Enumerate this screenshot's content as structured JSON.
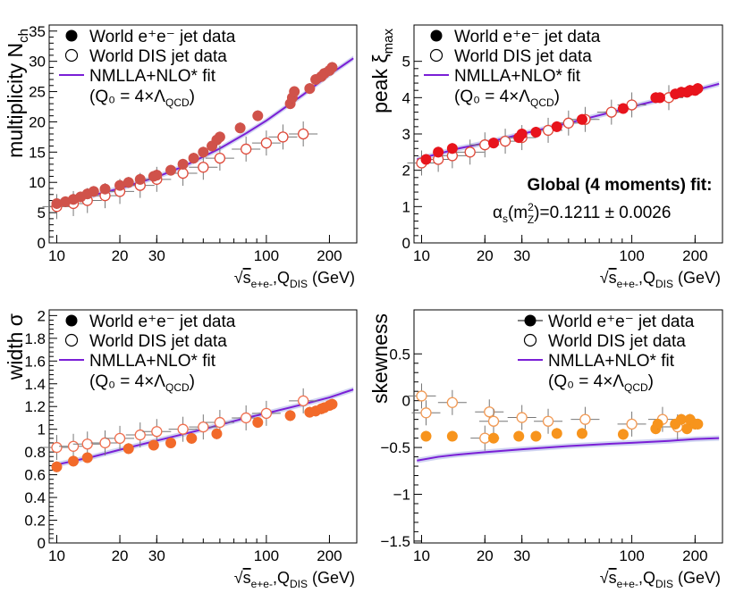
{
  "figure": {
    "note": "2x2 panel of jet moments vs energy scale"
  },
  "chart_data": [
    {
      "id": "multiplicity",
      "type": "scatter",
      "ylabel_main": "multiplicity N",
      "ylabel_sub": "ch",
      "xlabel_main": "s",
      "xlabel_sub": "e+e-",
      "xlabel_rest": ",Q",
      "xlabel_sub2": "DIS",
      "xlabel_unit": " (GeV)",
      "xscale": "log",
      "xlim": [
        9.2,
        270
      ],
      "ylim": [
        0,
        36
      ],
      "yticks": [
        0,
        5,
        10,
        15,
        20,
        25,
        30,
        35
      ],
      "ytick_labels": [
        "0",
        "5",
        "10",
        "15",
        "20",
        "25",
        "30",
        "35"
      ],
      "xticks": [
        10,
        20,
        30,
        100,
        200
      ],
      "xtick_labels": [
        "10",
        "20",
        "30",
        "100",
        "200"
      ],
      "legend": {
        "ee": "World e⁺e⁻ jet data",
        "dis": "World DIS jet data",
        "fit": "NMLLA+NLO* fit",
        "q0": "(Q₀ = 4×Λ",
        "q0_sub": "QCD",
        "q0_end": ")"
      },
      "ee_color": "#d0524a",
      "dis_color": "#e04a3a",
      "fit_color": "#7a1fd6",
      "ee_points": [
        [
          10,
          6.5
        ],
        [
          11,
          6.8
        ],
        [
          12,
          7.2
        ],
        [
          13,
          7.6
        ],
        [
          14,
          8.1
        ],
        [
          15,
          8.5
        ],
        [
          17,
          8.9
        ],
        [
          20,
          9.5
        ],
        [
          22,
          10.0
        ],
        [
          25,
          10.5
        ],
        [
          29,
          11.0
        ],
        [
          30,
          11.2
        ],
        [
          35,
          12.0
        ],
        [
          40,
          13.0
        ],
        [
          45,
          14.0
        ],
        [
          50,
          15.0
        ],
        [
          55,
          16.0
        ],
        [
          58,
          17.0
        ],
        [
          60,
          17.5
        ],
        [
          75,
          19.0
        ],
        [
          91,
          21.0
        ],
        [
          130,
          23.0
        ],
        [
          133,
          24.0
        ],
        [
          136,
          25.0
        ],
        [
          161,
          25.5
        ],
        [
          172,
          27.0
        ],
        [
          183,
          27.5
        ],
        [
          189,
          28.0
        ],
        [
          200,
          28.5
        ],
        [
          206,
          29.0
        ]
      ],
      "dis_points": [
        [
          10,
          6.0
        ],
        [
          12,
          6.5
        ],
        [
          14,
          7.0
        ],
        [
          17,
          7.8
        ],
        [
          20,
          8.5
        ],
        [
          25,
          9.5
        ],
        [
          30,
          10.5
        ],
        [
          40,
          11.5
        ],
        [
          50,
          12.5
        ],
        [
          60,
          14.0
        ],
        [
          80,
          15.5
        ],
        [
          100,
          16.5
        ],
        [
          120,
          17.5
        ],
        [
          150,
          18.0
        ]
      ],
      "fit_curve": [
        [
          9.5,
          6.6
        ],
        [
          12,
          7.2
        ],
        [
          15,
          7.9
        ],
        [
          20,
          9.0
        ],
        [
          30,
          10.9
        ],
        [
          40,
          12.6
        ],
        [
          60,
          15.6
        ],
        [
          80,
          18.1
        ],
        [
          100,
          20.2
        ],
        [
          150,
          24.5
        ],
        [
          200,
          27.8
        ],
        [
          260,
          30.5
        ]
      ]
    },
    {
      "id": "peak",
      "type": "scatter",
      "ylabel_main": "peak ξ",
      "ylabel_sub": "max",
      "xlabel_main": "s",
      "xlabel_sub": "e+e-",
      "xlabel_rest": ",Q",
      "xlabel_sub2": "DIS",
      "xlabel_unit": " (GeV)",
      "xscale": "log",
      "xlim": [
        9.2,
        270
      ],
      "ylim": [
        0,
        6
      ],
      "yticks": [
        0,
        1,
        2,
        3,
        4,
        5
      ],
      "ytick_labels": [
        "0",
        "1",
        "2",
        "3",
        "4",
        "5"
      ],
      "xticks": [
        10,
        20,
        30,
        100,
        200
      ],
      "xtick_labels": [
        "10",
        "20",
        "30",
        "100",
        "200"
      ],
      "legend": {
        "ee": "World e⁺e⁻ jet data",
        "dis": "World DIS jet data",
        "fit": "NMLLA+NLO* fit",
        "q0": "(Q₀ = 4×Λ",
        "q0_sub": "QCD",
        "q0_end": ")"
      },
      "annotation_title": "Global (4 moments) fit:",
      "annotation_alpha": "α",
      "annotation_alpha_sub": "s",
      "annotation_m": "(m",
      "annotation_m_sup": "2",
      "annotation_m_sub": "Z",
      "annotation_value": ")=0.1211 ± 0.0026",
      "ee_color": "#e8141c",
      "dis_color": "#e04a3a",
      "fit_color": "#7a1fd6",
      "ee_points": [
        [
          10.5,
          2.3
        ],
        [
          12,
          2.5
        ],
        [
          14,
          2.6
        ],
        [
          22,
          2.75
        ],
        [
          29,
          2.9
        ],
        [
          30,
          3.0
        ],
        [
          35,
          3.05
        ],
        [
          44,
          3.2
        ],
        [
          58,
          3.4
        ],
        [
          91,
          3.7
        ],
        [
          130,
          4.0
        ],
        [
          136,
          4.0
        ],
        [
          161,
          4.1
        ],
        [
          172,
          4.15
        ],
        [
          183,
          4.15
        ],
        [
          189,
          4.2
        ],
        [
          200,
          4.2
        ],
        [
          206,
          4.25
        ]
      ],
      "dis_points": [
        [
          10,
          2.2
        ],
        [
          12,
          2.3
        ],
        [
          14,
          2.4
        ],
        [
          17,
          2.5
        ],
        [
          20,
          2.7
        ],
        [
          25,
          2.8
        ],
        [
          30,
          2.9
        ],
        [
          40,
          3.1
        ],
        [
          50,
          3.3
        ],
        [
          60,
          3.4
        ],
        [
          80,
          3.6
        ],
        [
          100,
          3.8
        ],
        [
          150,
          4.0
        ]
      ],
      "fit_curve": [
        [
          9.5,
          2.3
        ],
        [
          15,
          2.6
        ],
        [
          20,
          2.75
        ],
        [
          30,
          3.0
        ],
        [
          50,
          3.3
        ],
        [
          80,
          3.6
        ],
        [
          100,
          3.75
        ],
        [
          150,
          4.0
        ],
        [
          200,
          4.2
        ],
        [
          260,
          4.38
        ]
      ]
    },
    {
      "id": "width",
      "type": "scatter",
      "ylabel_main": "width σ",
      "ylabel_sub": "",
      "xlabel_main": "s",
      "xlabel_sub": "e+e-",
      "xlabel_rest": ",Q",
      "xlabel_sub2": "DIS",
      "xlabel_unit": " (GeV)",
      "xscale": "log",
      "xlim": [
        9.2,
        270
      ],
      "ylim": [
        0,
        2.05
      ],
      "yticks": [
        0,
        0.2,
        0.4,
        0.6,
        0.8,
        1.0,
        1.2,
        1.4,
        1.6,
        1.8,
        2.0
      ],
      "ytick_labels": [
        "0",
        "0.2",
        "0.4",
        "0.6",
        "0.8",
        "1",
        "1.2",
        "1.4",
        "1.6",
        "1.8",
        "2"
      ],
      "xticks": [
        10,
        20,
        30,
        100,
        200
      ],
      "xtick_labels": [
        "10",
        "20",
        "30",
        "100",
        "200"
      ],
      "legend": {
        "ee": "World e⁺e⁻ jet data",
        "dis": "World DIS jet data",
        "fit": "NMLLA+NLO* fit",
        "q0": "(Q₀ = 4×Λ",
        "q0_sub": "QCD",
        "q0_end": ")"
      },
      "ee_color": "#f26a2a",
      "dis_color": "#f07050",
      "fit_color": "#7a1fd6",
      "ee_points": [
        [
          10,
          0.67
        ],
        [
          12,
          0.72
        ],
        [
          14,
          0.75
        ],
        [
          22,
          0.83
        ],
        [
          29,
          0.86
        ],
        [
          35,
          0.88
        ],
        [
          44,
          0.92
        ],
        [
          58,
          0.96
        ],
        [
          91,
          1.06
        ],
        [
          130,
          1.12
        ],
        [
          161,
          1.15
        ],
        [
          172,
          1.16
        ],
        [
          183,
          1.18
        ],
        [
          189,
          1.19
        ],
        [
          200,
          1.21
        ],
        [
          206,
          1.22
        ]
      ],
      "dis_points": [
        [
          10,
          0.84
        ],
        [
          12,
          0.85
        ],
        [
          14,
          0.87
        ],
        [
          17,
          0.88
        ],
        [
          20,
          0.92
        ],
        [
          25,
          0.95
        ],
        [
          30,
          0.98
        ],
        [
          40,
          1.0
        ],
        [
          50,
          1.02
        ],
        [
          60,
          1.06
        ],
        [
          80,
          1.1
        ],
        [
          100,
          1.14
        ],
        [
          150,
          1.25
        ]
      ],
      "fit_curve": [
        [
          9.5,
          0.68
        ],
        [
          15,
          0.76
        ],
        [
          20,
          0.82
        ],
        [
          30,
          0.9
        ],
        [
          50,
          1.0
        ],
        [
          80,
          1.1
        ],
        [
          100,
          1.14
        ],
        [
          150,
          1.22
        ],
        [
          200,
          1.28
        ],
        [
          260,
          1.35
        ]
      ]
    },
    {
      "id": "skewness",
      "type": "scatter",
      "ylabel_main": "skewness",
      "ylabel_sub": "",
      "xlabel_main": "s",
      "xlabel_sub": "e+e-",
      "xlabel_rest": ",Q",
      "xlabel_sub2": "DIS",
      "xlabel_unit": " (GeV)",
      "xscale": "log",
      "xlim": [
        9.2,
        270
      ],
      "ylim": [
        -1.52,
        0.97
      ],
      "yticks": [
        -1.5,
        -1.0,
        -0.5,
        0.0,
        0.5
      ],
      "ytick_labels": [
        "−1.5",
        "−1",
        "−0.5",
        "0",
        "0.5"
      ],
      "xticks": [
        10,
        20,
        30,
        100,
        200
      ],
      "xtick_labels": [
        "10",
        "20",
        "30",
        "100",
        "200"
      ],
      "legend": {
        "ee": "World e⁺e⁻ jet data",
        "dis": "World DIS jet data",
        "fit": "NMLLA+NLO* fit",
        "q0": "(Q₀ = 4×Λ",
        "q0_sub": "QCD",
        "q0_end": ")"
      },
      "ee_color": "#f7941d",
      "dis_color": "#f29a55",
      "fit_color": "#7a1fd6",
      "ee_points": [
        [
          10.5,
          -0.38
        ],
        [
          14,
          -0.38
        ],
        [
          22,
          -0.4
        ],
        [
          29,
          -0.38
        ],
        [
          35,
          -0.38
        ],
        [
          44,
          -0.35
        ],
        [
          58,
          -0.35
        ],
        [
          91,
          -0.36
        ],
        [
          130,
          -0.3
        ],
        [
          133,
          -0.25
        ],
        [
          161,
          -0.25
        ],
        [
          172,
          -0.2
        ],
        [
          183,
          -0.3
        ],
        [
          189,
          -0.2
        ],
        [
          200,
          -0.25
        ],
        [
          206,
          -0.25
        ]
      ],
      "dis_points": [
        [
          10,
          0.05
        ],
        [
          10.5,
          -0.13
        ],
        [
          14,
          -0.02
        ],
        [
          20,
          -0.4
        ],
        [
          21,
          -0.12
        ],
        [
          22,
          -0.22
        ],
        [
          30,
          -0.18
        ],
        [
          40,
          -0.22
        ],
        [
          60,
          -0.2
        ],
        [
          100,
          -0.25
        ],
        [
          140,
          -0.2
        ],
        [
          165,
          -0.28
        ]
      ],
      "fit_curve": [
        [
          9.5,
          -0.64
        ],
        [
          12,
          -0.6
        ],
        [
          15,
          -0.575
        ],
        [
          20,
          -0.55
        ],
        [
          30,
          -0.52
        ],
        [
          50,
          -0.485
        ],
        [
          80,
          -0.46
        ],
        [
          100,
          -0.45
        ],
        [
          150,
          -0.43
        ],
        [
          200,
          -0.41
        ],
        [
          260,
          -0.4
        ]
      ]
    }
  ]
}
